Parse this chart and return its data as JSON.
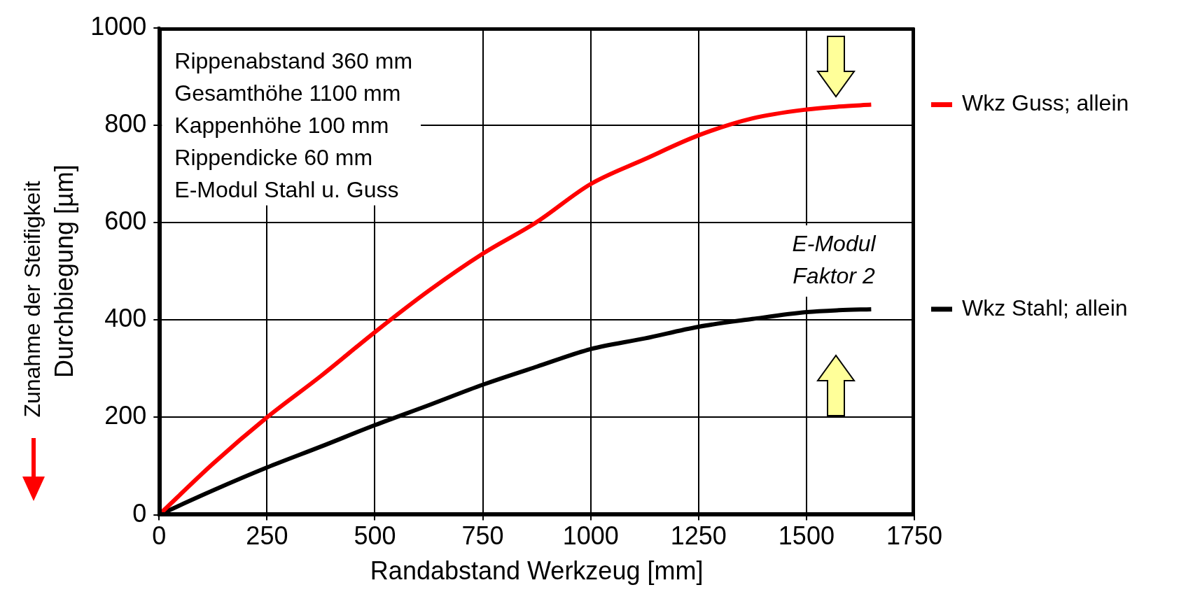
{
  "chart_data": {
    "type": "line",
    "xlabel": "Randabstand Werkzeug [mm]",
    "ylabel": "Durchbiegung [µm]",
    "xlim": [
      0,
      1750
    ],
    "xticks": [
      0,
      250,
      500,
      750,
      1000,
      1250,
      1500,
      1750
    ],
    "ylim": [
      0,
      1000
    ],
    "yticks": [
      0,
      200,
      400,
      600,
      800,
      1000
    ],
    "grid": true,
    "legend": "right",
    "marker": "none",
    "line_style": "solid",
    "series": [
      {
        "name": "Wkz Guss; allein",
        "color": "#ff0000",
        "x": [
          0,
          125,
          250,
          375,
          500,
          625,
          750,
          875,
          1000,
          1125,
          1250,
          1375,
          1500,
          1575,
          1650
        ],
        "values": [
          0,
          105,
          200,
          285,
          375,
          460,
          536,
          601,
          679,
          730,
          779,
          814,
          832,
          838,
          842
        ]
      },
      {
        "name": "Wkz Stahl; allein",
        "color": "#000000",
        "x": [
          0,
          125,
          250,
          375,
          500,
          625,
          750,
          875,
          1000,
          1125,
          1250,
          1375,
          1500,
          1575,
          1650
        ],
        "values": [
          0,
          50,
          97,
          140,
          184,
          225,
          267,
          304,
          340,
          362,
          386,
          402,
          416,
          420,
          422
        ]
      }
    ],
    "annotations": [
      "Rippenabstand 360 mm",
      "Gesamthöhe 1100 mm",
      "Kappenhöhe 100 mm",
      "Rippendicke 60 mm",
      "E-Modul Stahl u. Guss",
      "E-Modul Faktor 2",
      "Zunahme der Steifigkeit"
    ]
  }
}
